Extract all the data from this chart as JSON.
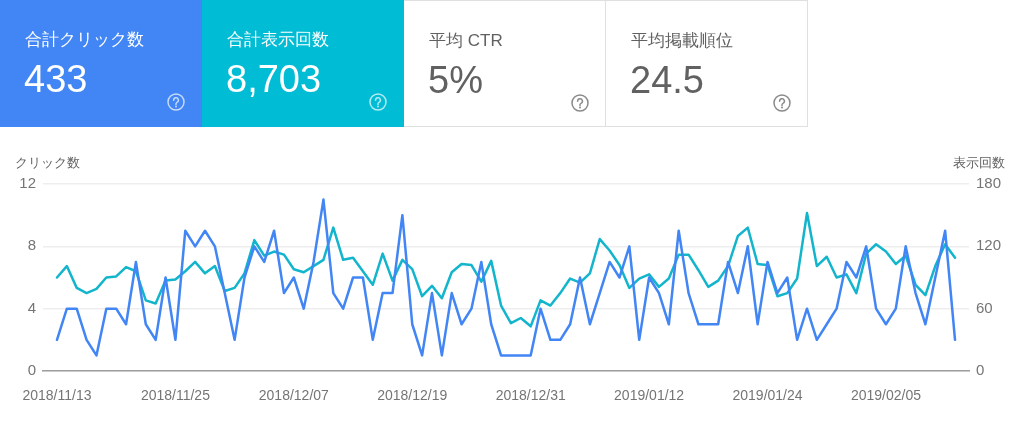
{
  "chart_data": [
    {
      "type": "other",
      "title": "合計クリック数",
      "annotations": [
        "433"
      ],
      "color": "#4285f4"
    },
    {
      "type": "other",
      "title": "合計表示回数",
      "annotations": [
        "8,703"
      ],
      "color": "#00bcd4"
    },
    {
      "type": "other",
      "title": "平均 CTR",
      "annotations": [
        "5%"
      ],
      "color": "#ffffff"
    },
    {
      "type": "other",
      "title": "平均掲載順位",
      "annotations": [
        "24.5"
      ],
      "color": "#ffffff"
    },
    {
      "type": "line",
      "ylabel": "クリック数",
      "y2label": "表示回数",
      "x": [
        "2018-11-13",
        "2018-11-14",
        "2018-11-15",
        "2018-11-16",
        "2018-11-17",
        "2018-11-18",
        "2018-11-19",
        "2018-11-20",
        "2018-11-21",
        "2018-11-22",
        "2018-11-23",
        "2018-11-24",
        "2018-11-25",
        "2018-11-26",
        "2018-11-27",
        "2018-11-28",
        "2018-11-29",
        "2018-11-30",
        "2018-12-01",
        "2018-12-02",
        "2018-12-03",
        "2018-12-04",
        "2018-12-05",
        "2018-12-06",
        "2018-12-07",
        "2018-12-08",
        "2018-12-09",
        "2018-12-10",
        "2018-12-11",
        "2018-12-12",
        "2018-12-13",
        "2018-12-14",
        "2018-12-15",
        "2018-12-16",
        "2018-12-17",
        "2018-12-18",
        "2018-12-19",
        "2018-12-20",
        "2018-12-21",
        "2018-12-22",
        "2018-12-23",
        "2018-12-24",
        "2018-12-25",
        "2018-12-26",
        "2018-12-27",
        "2018-12-28",
        "2018-12-29",
        "2018-12-30",
        "2018-12-31",
        "2019-01-01",
        "2019-01-02",
        "2019-01-03",
        "2019-01-04",
        "2019-01-05",
        "2019-01-06",
        "2019-01-07",
        "2019-01-08",
        "2019-01-09",
        "2019-01-10",
        "2019-01-11",
        "2019-01-12",
        "2019-01-13",
        "2019-01-14",
        "2019-01-15",
        "2019-01-16",
        "2019-01-17",
        "2019-01-18",
        "2019-01-19",
        "2019-01-20",
        "2019-01-21",
        "2019-01-22",
        "2019-01-23",
        "2019-01-24",
        "2019-01-25",
        "2019-01-26",
        "2019-01-27",
        "2019-01-28",
        "2019-01-29",
        "2019-01-30",
        "2019-01-31",
        "2019-02-01",
        "2019-02-02",
        "2019-02-03",
        "2019-02-04",
        "2019-02-05",
        "2019-02-06",
        "2019-02-07",
        "2019-02-08",
        "2019-02-09",
        "2019-02-10",
        "2019-02-11",
        "2019-02-12"
      ],
      "series": [
        {
          "color": "#4285f4",
          "values": [
            2,
            4,
            4,
            2,
            1,
            4,
            4,
            3,
            7,
            3,
            2,
            6,
            2,
            9,
            8,
            9,
            8,
            5,
            2,
            6,
            8,
            7,
            9,
            5,
            6,
            4,
            7,
            11,
            5,
            4,
            6,
            6,
            2,
            5,
            5,
            10,
            3,
            1,
            5,
            1,
            5,
            3,
            4,
            7,
            3,
            1,
            1,
            1,
            1,
            4,
            2,
            2,
            3,
            6,
            3,
            5,
            7,
            6,
            8,
            2,
            6,
            5,
            3,
            9,
            5,
            3,
            3,
            3,
            7,
            5,
            8,
            3,
            7,
            5,
            6,
            2,
            4,
            2,
            3,
            4,
            7,
            6,
            8,
            4,
            3,
            4,
            8,
            5,
            3,
            6,
            9,
            2
          ]
        },
        {
          "color": "#12b5cb",
          "axis": "y2",
          "values": [
            90,
            101,
            80,
            75,
            79,
            90,
            91,
            100,
            96,
            68,
            65,
            87,
            88,
            96,
            105,
            94,
            101,
            77,
            80,
            94,
            126,
            111,
            115,
            112,
            98,
            95,
            101,
            107,
            138,
            107,
            109,
            96,
            83,
            113,
            87,
            107,
            98,
            72,
            82,
            70,
            95,
            103,
            102,
            86,
            106,
            63,
            46,
            51,
            43,
            68,
            63,
            75,
            89,
            85,
            94,
            127,
            116,
            102,
            80,
            89,
            93,
            81,
            89,
            112,
            112,
            97,
            81,
            87,
            101,
            130,
            138,
            103,
            102,
            72,
            75,
            89,
            152,
            101,
            110,
            90,
            93,
            75,
            113,
            122,
            115,
            103,
            111,
            83,
            73,
            101,
            122,
            109
          ]
        }
      ],
      "xlim": [
        "2018-11-11T14:00",
        "2019-02-13T10:00"
      ],
      "xticks": [
        {
          "value": "2018-11-13",
          "label": "2018/11/13"
        },
        {
          "value": "2018-11-25",
          "label": "2018/11/25"
        },
        {
          "value": "2018-12-07",
          "label": "2018/12/07"
        },
        {
          "value": "2018-12-19",
          "label": "2018/12/19"
        },
        {
          "value": "2018-12-31",
          "label": "2018/12/31"
        },
        {
          "value": "2019-01-12",
          "label": "2019/01/12"
        },
        {
          "value": "2019-01-24",
          "label": "2019/01/24"
        },
        {
          "value": "2019-02-05",
          "label": "2019/02/05"
        }
      ],
      "ylim": [
        0,
        12
      ],
      "yticks": [
        0,
        4,
        8,
        12
      ],
      "y2lim": [
        0,
        180
      ],
      "y2ticks": [
        0,
        60,
        120,
        180
      ],
      "grid": "y"
    }
  ]
}
